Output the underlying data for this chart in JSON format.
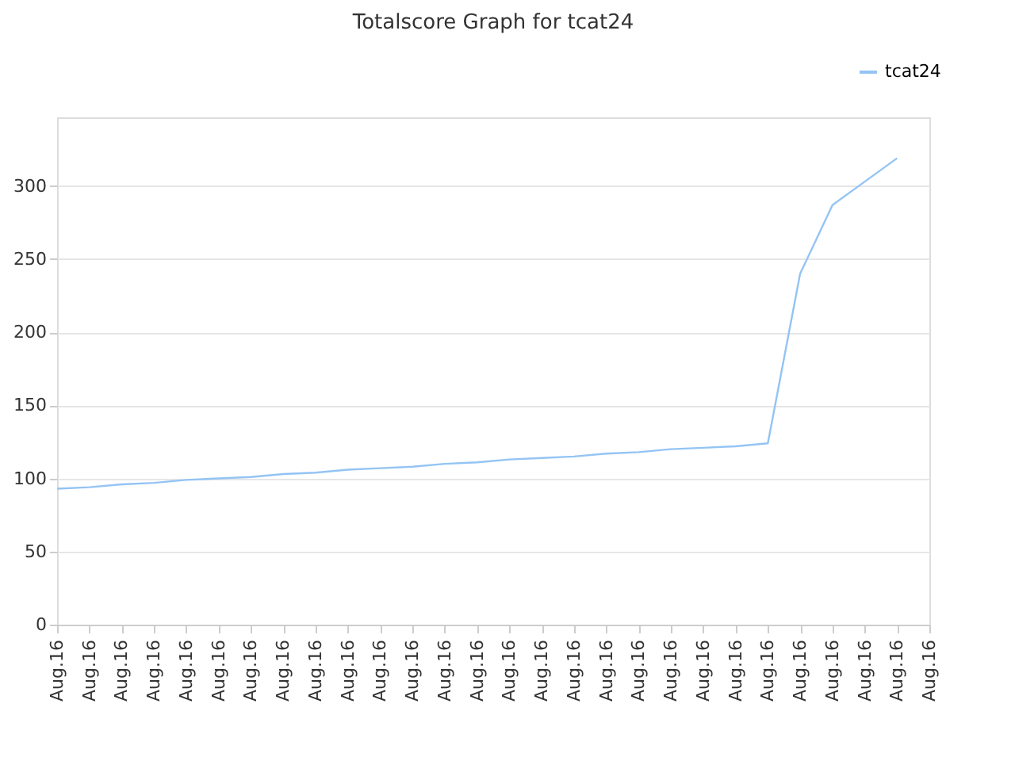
{
  "chart_data": {
    "type": "line",
    "title": "Totalscore Graph for tcat24",
    "categories": [
      "Aug.16",
      "Aug.16",
      "Aug.16",
      "Aug.16",
      "Aug.16",
      "Aug.16",
      "Aug.16",
      "Aug.16",
      "Aug.16",
      "Aug.16",
      "Aug.16",
      "Aug.16",
      "Aug.16",
      "Aug.16",
      "Aug.16",
      "Aug.16",
      "Aug.16",
      "Aug.16",
      "Aug.16",
      "Aug.16",
      "Aug.16",
      "Aug.16",
      "Aug.16",
      "Aug.16",
      "Aug.16",
      "Aug.16",
      "Aug.16",
      "Aug.16"
    ],
    "ylim": [
      0,
      347
    ],
    "yticks": [
      0,
      50,
      100,
      150,
      200,
      250,
      300
    ],
    "grid": "y",
    "legend": "top right",
    "series": [
      {
        "name": "tcat24",
        "color": "#94c4f4",
        "values": [
          93,
          94,
          96,
          97,
          99,
          100,
          101,
          103,
          104,
          106,
          107,
          108,
          110,
          111,
          113,
          114,
          115,
          117,
          118,
          120,
          121,
          122,
          124,
          240,
          287,
          303,
          319,
          null
        ]
      }
    ]
  }
}
